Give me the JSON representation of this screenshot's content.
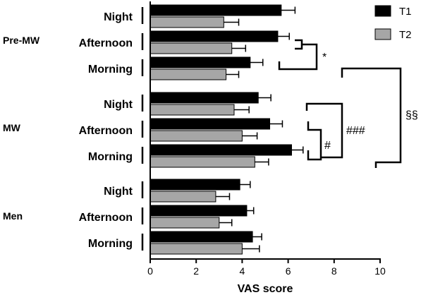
{
  "chart_data": {
    "type": "bar",
    "orientation": "horizontal",
    "xlabel": "VAS score",
    "xlim": [
      0,
      10
    ],
    "xticks": [
      "0",
      "2",
      "4",
      "6",
      "8",
      "10"
    ],
    "grid": false,
    "legend_position": "top-right",
    "series": [
      {
        "name": "T1",
        "color": "#000000"
      },
      {
        "name": "T2",
        "color": "#a6a6a6"
      }
    ],
    "groups": [
      {
        "name": "Pre-MW",
        "categories": [
          {
            "label": "Night",
            "T1": 5.7,
            "T1_err": 0.6,
            "T2": 3.2,
            "T2_err": 0.65
          },
          {
            "label": "Afternoon",
            "T1": 5.55,
            "T1_err": 0.5,
            "T2": 3.55,
            "T2_err": 0.6
          },
          {
            "label": "Morning",
            "T1": 4.35,
            "T1_err": 0.55,
            "T2": 3.3,
            "T2_err": 0.55
          }
        ]
      },
      {
        "name": "MW",
        "categories": [
          {
            "label": "Night",
            "T1": 4.7,
            "T1_err": 0.55,
            "T2": 3.65,
            "T2_err": 0.65
          },
          {
            "label": "Afternoon",
            "T1": 5.2,
            "T1_err": 0.55,
            "T2": 4.0,
            "T2_err": 0.65
          },
          {
            "label": "Morning",
            "T1": 6.15,
            "T1_err": 0.5,
            "T2": 4.55,
            "T2_err": 0.6
          }
        ]
      },
      {
        "name": "Men",
        "categories": [
          {
            "label": "Night",
            "T1": 3.9,
            "T1_err": 0.45,
            "T2": 2.85,
            "T2_err": 0.6
          },
          {
            "label": "Afternoon",
            "T1": 4.2,
            "T1_err": 0.3,
            "T2": 3.0,
            "T2_err": 0.55
          },
          {
            "label": "Morning",
            "T1": 4.45,
            "T1_err": 0.4,
            "T2": 4.0,
            "T2_err": 0.75
          }
        ]
      }
    ],
    "annotations": [
      {
        "label": "*",
        "compares": "Pre-MW Afternoon vs Pre-MW Morning"
      },
      {
        "label": "#",
        "compares": "MW Afternoon vs MW Morning"
      },
      {
        "label": "###",
        "compares": "MW Night vs MW Morning"
      },
      {
        "label": "§§",
        "compares": "Pre-MW vs MW"
      }
    ]
  }
}
